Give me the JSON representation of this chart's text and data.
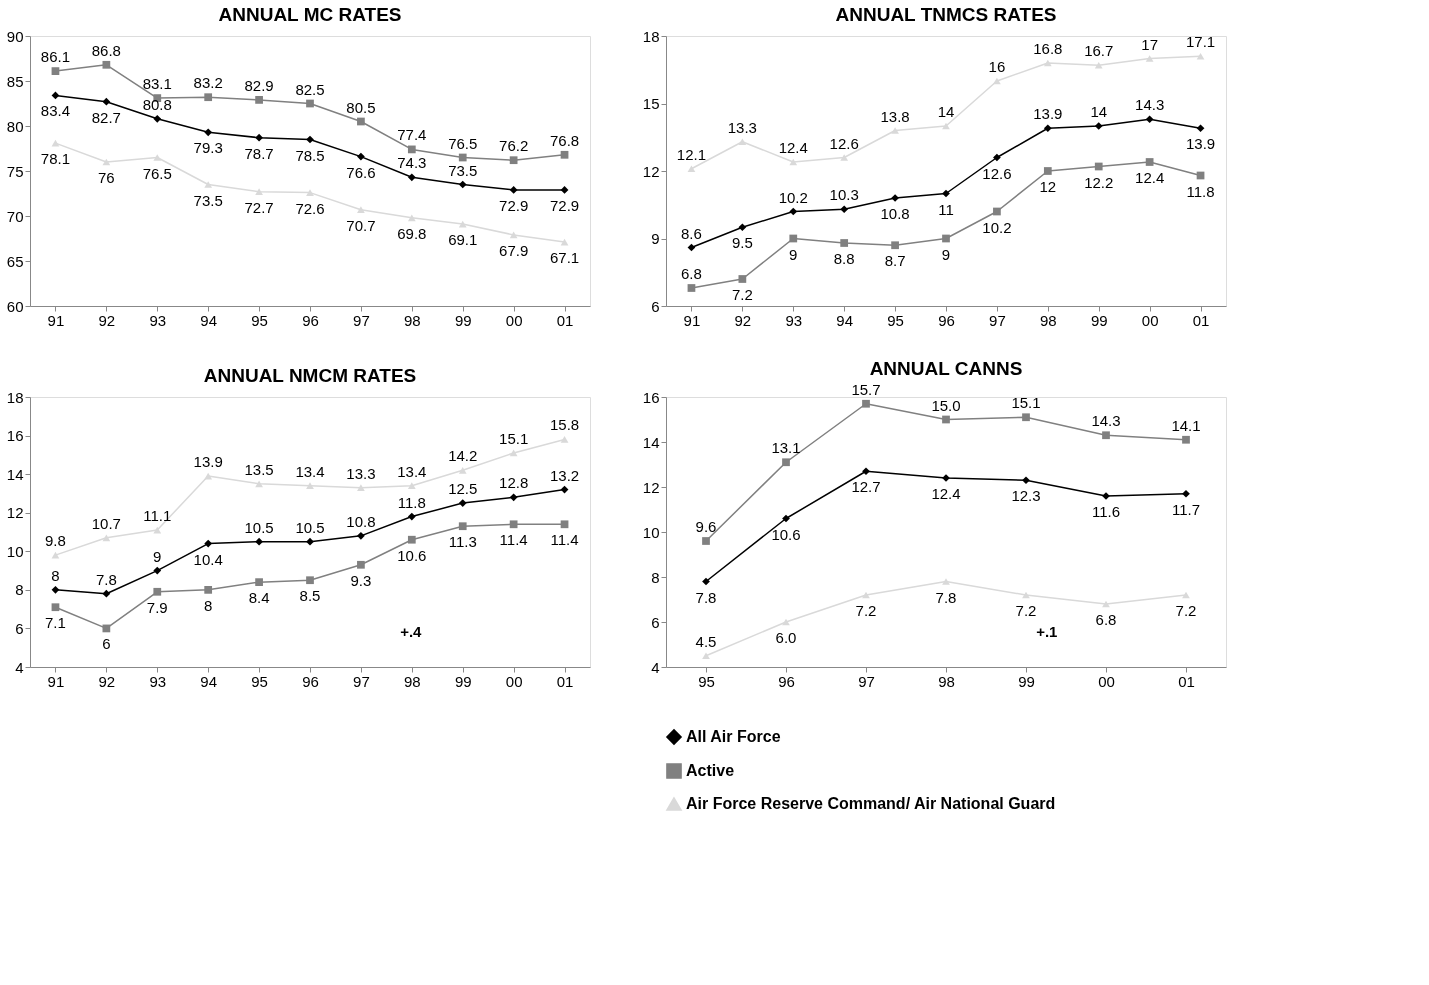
{
  "chart_data": [
    {
      "type": "line",
      "title": "ANNUAL MC RATES",
      "categories": [
        "91",
        "92",
        "93",
        "94",
        "95",
        "96",
        "97",
        "98",
        "99",
        "00",
        "01"
      ],
      "ylim": [
        60,
        90
      ],
      "yticks": [
        60,
        65,
        70,
        75,
        80,
        85,
        90
      ],
      "grid": false,
      "data_labels": true,
      "series": [
        {
          "color": "#000000",
          "marker": "diamond",
          "values": [
            83.4,
            82.7,
            80.8,
            79.3,
            78.7,
            78.5,
            76.6,
            74.3,
            73.5,
            72.9,
            72.9
          ]
        },
        {
          "color": "#808080",
          "marker": "square",
          "values": [
            86.1,
            86.8,
            83.1,
            83.2,
            82.9,
            82.5,
            80.5,
            77.4,
            76.5,
            76.2,
            76.8
          ]
        },
        {
          "color": "#d9d9d9",
          "marker": "triangle",
          "values": [
            78.1,
            76,
            76.5,
            73.5,
            72.7,
            72.6,
            70.7,
            69.8,
            69.1,
            67.9,
            67.1
          ]
        }
      ]
    },
    {
      "type": "line",
      "title": "ANNUAL TNMCS RATES",
      "categories": [
        "91",
        "92",
        "93",
        "94",
        "95",
        "96",
        "97",
        "98",
        "99",
        "00",
        "01"
      ],
      "ylim": [
        6,
        18
      ],
      "yticks": [
        6,
        9,
        12,
        15,
        18
      ],
      "grid": false,
      "data_labels": true,
      "series": [
        {
          "color": "#000000",
          "marker": "diamond",
          "values": [
            8.6,
            9.5,
            10.2,
            10.3,
            10.8,
            11,
            12.6,
            13.9,
            14,
            14.3,
            13.9
          ]
        },
        {
          "color": "#808080",
          "marker": "square",
          "values": [
            6.8,
            7.2,
            9,
            8.8,
            8.7,
            9,
            10.2,
            12,
            12.2,
            12.4,
            11.8
          ]
        },
        {
          "color": "#d9d9d9",
          "marker": "triangle",
          "values": [
            12.1,
            13.3,
            12.4,
            12.6,
            13.8,
            14,
            16,
            16.8,
            16.7,
            17,
            17.1
          ]
        }
      ]
    },
    {
      "type": "line",
      "title": "ANNUAL NMCM RATES",
      "categories": [
        "91",
        "92",
        "93",
        "94",
        "95",
        "96",
        "97",
        "98",
        "99",
        "00",
        "01"
      ],
      "ylim": [
        4,
        18
      ],
      "yticks": [
        4,
        6,
        8,
        10,
        12,
        14,
        16,
        18
      ],
      "grid": false,
      "data_labels": true,
      "annotations": [
        "+.4"
      ],
      "series": [
        {
          "color": "#000000",
          "marker": "diamond",
          "values": [
            8,
            7.8,
            9,
            10.4,
            10.5,
            10.5,
            10.8,
            11.8,
            12.5,
            12.8,
            13.2
          ]
        },
        {
          "color": "#808080",
          "marker": "square",
          "values": [
            7.1,
            6,
            7.9,
            8,
            8.4,
            8.5,
            9.3,
            10.6,
            11.3,
            11.4,
            11.4
          ]
        },
        {
          "color": "#d9d9d9",
          "marker": "triangle",
          "values": [
            9.8,
            10.7,
            11.1,
            13.9,
            13.5,
            13.4,
            13.3,
            13.4,
            14.2,
            15.1,
            15.8
          ]
        }
      ]
    },
    {
      "type": "line",
      "title": "ANNUAL CANNS",
      "categories": [
        "95",
        "96",
        "97",
        "98",
        "99",
        "00",
        "01"
      ],
      "ylim": [
        4,
        16
      ],
      "yticks": [
        4,
        6,
        8,
        10,
        12,
        14,
        16
      ],
      "grid": false,
      "legend": "bottom",
      "annotations": [
        "+.1"
      ],
      "series": [
        {
          "name": "All Air Force",
          "color": "#000000",
          "marker": "diamond",
          "values": [
            7.8,
            10.6,
            12.7,
            12.4,
            12.3,
            11.6,
            11.7
          ],
          "value_labels": [
            "7.8",
            "10.6",
            "12.7",
            "12.4",
            "12.3",
            "11.6",
            "11.7"
          ]
        },
        {
          "name": "Active",
          "color": "#808080",
          "marker": "square",
          "values": [
            9.6,
            13.1,
            15.7,
            15.0,
            15.1,
            14.3,
            14.1
          ],
          "value_labels": [
            "9.6",
            "13.1",
            "15.7",
            "15.0",
            "15.1",
            "14.3",
            "14.1"
          ]
        },
        {
          "name": "Air Force Reserve Command/ Air National Guard",
          "color": "#d9d9d9",
          "marker": "triangle",
          "values": [
            4.5,
            6.0,
            7.2,
            7.8,
            7.2,
            6.8,
            7.2
          ],
          "value_labels": [
            "4.5",
            "6.0",
            "7.2",
            "7.8",
            "7.2",
            "6.8",
            "7.2"
          ]
        }
      ]
    }
  ]
}
